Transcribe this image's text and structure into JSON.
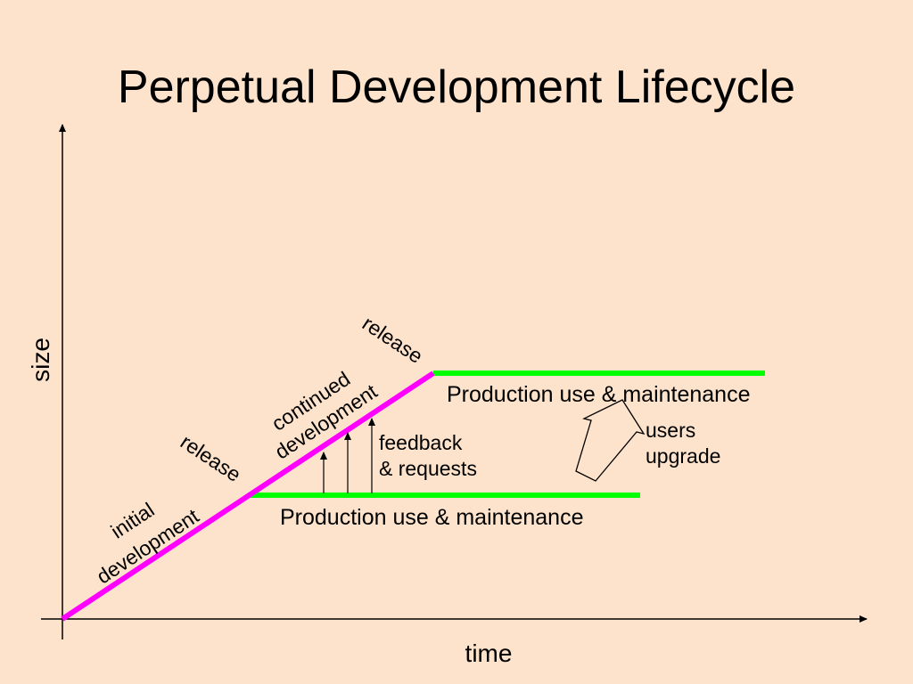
{
  "title": "Perpetual Development Lifecycle",
  "axes": {
    "x_label": "time",
    "y_label": "size"
  },
  "phases": {
    "initial_line1": "initial",
    "initial_line2": "development",
    "continued_line1": "continued",
    "continued_line2": "development",
    "release_first": "release",
    "release_second": "release"
  },
  "production": {
    "lower_label": "Production use & maintenance",
    "upper_label": "Production use & maintenance"
  },
  "feedback": {
    "line1": "feedback",
    "line2": "& requests"
  },
  "upgrade": {
    "line1": "users",
    "line2": "upgrade"
  },
  "colors": {
    "background": "#fde3cc",
    "development_line": "#ff00ff",
    "production_line": "#00ff00",
    "axis": "#000000"
  }
}
